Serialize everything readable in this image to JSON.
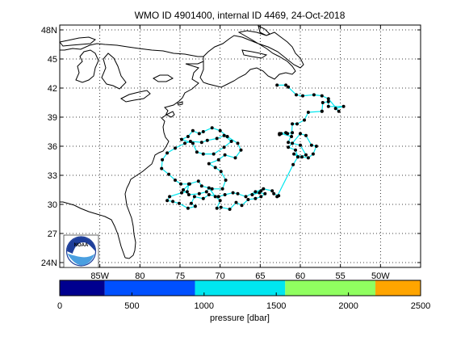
{
  "title": "WMO ID 4901400, internal ID 4469, 24-Oct-2018",
  "map": {
    "lon_range": [
      -90,
      -45
    ],
    "lat_range": [
      23.5,
      48.5
    ],
    "lat_ticks": [
      {
        "value": 48,
        "label": "48N"
      },
      {
        "value": 45,
        "label": "45"
      },
      {
        "value": 42,
        "label": "42"
      },
      {
        "value": 39,
        "label": "39"
      },
      {
        "value": 36,
        "label": "36"
      },
      {
        "value": 33,
        "label": "33"
      },
      {
        "value": 30,
        "label": "30"
      },
      {
        "value": 27,
        "label": "27"
      },
      {
        "value": 24,
        "label": "24N"
      }
    ],
    "lon_ticks": [
      {
        "value": -85,
        "label": "85W"
      },
      {
        "value": -80,
        "label": "80"
      },
      {
        "value": -75,
        "label": "75"
      },
      {
        "value": -70,
        "label": "70"
      },
      {
        "value": -65,
        "label": "65"
      },
      {
        "value": -60,
        "label": "60"
      },
      {
        "value": -55,
        "label": "55"
      },
      {
        "value": -50,
        "label": "50W"
      }
    ],
    "grid": true,
    "track_color": "#00e6ee",
    "marker_color": "#000000"
  },
  "colorbar": {
    "label": "pressure [dbar]",
    "range": [
      0,
      2500
    ],
    "tick_labels": [
      "0",
      "500",
      "1000",
      "1500",
      "2000",
      "2500"
    ],
    "tick_values": [
      0,
      500,
      1000,
      1500,
      2000,
      2500
    ],
    "segments": [
      {
        "from": 0,
        "to": 312,
        "color": "#00008f"
      },
      {
        "from": 312,
        "to": 937,
        "color": "#0050ff"
      },
      {
        "from": 937,
        "to": 1562,
        "color": "#00e6f0"
      },
      {
        "from": 1562,
        "to": 2187,
        "color": "#90ff60"
      },
      {
        "from": 2187,
        "to": 2500,
        "color": "#ffa500"
      }
    ]
  },
  "logo": {
    "icon": "noaa-logo",
    "text": "NOAA"
  },
  "chart_data": {
    "type": "scatter",
    "title": "WMO ID 4901400, internal ID 4469, 24-Oct-2018",
    "xlabel": "",
    "ylabel": "",
    "xlim": [
      -90,
      -45
    ],
    "ylim": [
      23.5,
      48.5
    ],
    "series": [
      {
        "x": [
          -62.9,
          -61.8,
          -61.5,
          -60.5,
          -59.7,
          -58.3,
          -57.3,
          -56.5,
          -55.2,
          -55.6,
          -54.6,
          -56.5,
          -56.5,
          -57.2,
          -57.3,
          -57.3,
          -59.0,
          -59.5,
          -60.4,
          -61.0,
          -61.1,
          -62.4,
          -62.6,
          -62.6,
          -61.8,
          -61.6,
          -61.0,
          -61.5,
          -60.0,
          -59.3,
          -60.3,
          -60.8,
          -59.8,
          -59.0,
          -58.4,
          -58.0,
          -58.6,
          -59.3,
          -60.0,
          -61.0,
          -61.5,
          -60.6,
          -60.3,
          -60.9,
          -62.9,
          -62.7,
          -63.3,
          -63.5,
          -64.6,
          -65.6,
          -66.8,
          -67.8,
          -68.4,
          -69.4,
          -70.2,
          -71.4,
          -72.1,
          -73.2,
          -73.6,
          -73.1,
          -74.0,
          -75.1,
          -75.9,
          -76.6,
          -76.3,
          -74.8,
          -74.1,
          -73.9,
          -72.7,
          -72.3,
          -71.0,
          -69.7,
          -69.3,
          -69.9,
          -70.6,
          -71.4,
          -70.2,
          -69.4,
          -68.1,
          -67.4,
          -67.8,
          -69.1,
          -70.0,
          -71.0,
          -72.1,
          -72.6,
          -73.4,
          -74.0,
          -74.8,
          -73.4,
          -72.9,
          -72.1,
          -70.8,
          -69.5,
          -68.6,
          -69.5,
          -70.4,
          -71.6,
          -72.3,
          -73.7,
          -74.4,
          -75.6,
          -76.6,
          -77.2,
          -77.3,
          -76.4,
          -75.6,
          -74.9,
          -73.8,
          -74.6,
          -73.9,
          -72.6,
          -71.7,
          -71.4,
          -70.6,
          -70.0,
          -70.4,
          -69.9,
          -68.8,
          -68.0,
          -67.3,
          -66.5,
          -65.6,
          -64.9,
          -64.4,
          -65.1,
          -66.0,
          -64.9
        ],
        "y": [
          42.3,
          42.3,
          42.1,
          41.3,
          41.2,
          41.3,
          41.2,
          40.9,
          39.6,
          39.9,
          40.1,
          40.1,
          40.6,
          40.5,
          39.6,
          39.6,
          39.5,
          38.7,
          38.3,
          38.3,
          37.0,
          37.3,
          37.2,
          37.3,
          37.4,
          37.3,
          37.4,
          36.4,
          36.1,
          35.1,
          34.9,
          35.2,
          34.9,
          34.8,
          35.2,
          36.0,
          36.1,
          37.1,
          37.3,
          36.3,
          35.9,
          35.6,
          34.9,
          34.1,
          30.8,
          30.9,
          31.1,
          31.4,
          31.6,
          31.3,
          30.8,
          31.1,
          31.2,
          31.0,
          30.8,
          31.0,
          30.6,
          30.8,
          30.1,
          29.8,
          29.6,
          30.1,
          30.3,
          30.4,
          30.8,
          31.2,
          31.3,
          32.1,
          32.4,
          31.9,
          31.6,
          31.6,
          32.5,
          33.4,
          33.8,
          34.2,
          34.6,
          35.1,
          34.8,
          35.6,
          36.3,
          37.0,
          37.6,
          37.9,
          37.5,
          37.3,
          37.6,
          37.0,
          36.7,
          36.3,
          35.4,
          35.2,
          35.2,
          35.9,
          36.5,
          37.1,
          36.8,
          36.6,
          36.4,
          36.5,
          36.3,
          35.8,
          35.3,
          34.6,
          33.7,
          33.1,
          32.5,
          32.1,
          32.1,
          31.5,
          31.0,
          31.1,
          31.3,
          31.7,
          30.8,
          30.4,
          29.6,
          29.7,
          29.5,
          30.2,
          29.9,
          30.5,
          30.6,
          30.8,
          31.1,
          31.2,
          31.0,
          31.4
        ]
      }
    ]
  }
}
